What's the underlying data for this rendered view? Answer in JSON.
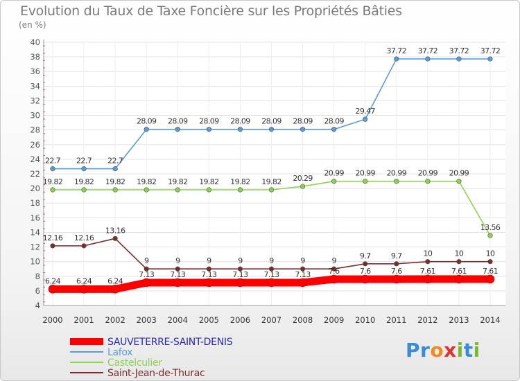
{
  "header": {
    "title": "Evolution du Taux de Taxe Foncière sur les Propriétés Bâties",
    "unit": "(en %)"
  },
  "brand": {
    "letters": [
      "P",
      "r",
      "o",
      "x",
      "i",
      "t",
      "i"
    ],
    "colors": [
      "#3a8ad6",
      "#3a8ad6",
      "#f08a1c",
      "#e03030",
      "#7ab82e",
      "#3a8ad6",
      "#7ab82e"
    ]
  },
  "chart_data": {
    "type": "line",
    "title": "Evolution du Taux de Taxe Foncière sur les Propriétés Bâties",
    "ylabel": "(en %)",
    "xlabel": "",
    "x": [
      "2000",
      "2001",
      "2002",
      "2003",
      "2004",
      "2005",
      "2006",
      "2007",
      "2008",
      "2009",
      "2010",
      "2011",
      "2012",
      "2013",
      "2014"
    ],
    "ylim": [
      4,
      40
    ],
    "yticks": [
      4,
      6,
      8,
      10,
      12,
      14,
      16,
      18,
      20,
      22,
      24,
      26,
      28,
      30,
      32,
      34,
      36,
      38,
      40
    ],
    "grid": true,
    "legend": "bottom-left",
    "series": [
      {
        "name": "SAUVETERRE-SAINT-DENIS",
        "color": "#ff0000",
        "emphasis": true,
        "values": [
          6.24,
          6.24,
          6.24,
          7.13,
          7.13,
          7.13,
          7.13,
          7.13,
          7.13,
          7.6,
          7.6,
          7.6,
          7.61,
          7.61,
          7.61
        ],
        "labels": [
          "6.24",
          "6.24",
          "6.24",
          "7.13",
          "7.13",
          "7.13",
          "7.13",
          "7.13",
          "7.13",
          "7.6",
          "7.6",
          "7.6",
          "7.61",
          "7.61",
          "7.61"
        ]
      },
      {
        "name": "Lafox",
        "color": "#5b9bd5",
        "values": [
          22.7,
          22.7,
          22.7,
          28.09,
          28.09,
          28.09,
          28.09,
          28.09,
          28.09,
          28.09,
          29.47,
          37.72,
          37.72,
          37.72,
          37.72
        ],
        "labels": [
          "22.7",
          "22.7",
          "22.7",
          "28.09",
          "28.09",
          "28.09",
          "28.09",
          "28.09",
          "28.09",
          "28.09",
          "29.47",
          "37.72",
          "37.72",
          "37.72",
          "37.72"
        ]
      },
      {
        "name": "Castelculier",
        "color": "#8ed14f",
        "values": [
          19.82,
          19.82,
          19.82,
          19.82,
          19.82,
          19.82,
          19.82,
          19.82,
          20.29,
          20.99,
          20.99,
          20.99,
          20.99,
          20.99,
          13.56
        ],
        "labels": [
          "19.82",
          "19.82",
          "19.82",
          "19.82",
          "19.82",
          "19.82",
          "19.82",
          "19.82",
          "20.29",
          "20.99",
          "20.99",
          "20.99",
          "20.99",
          "20.99",
          "13.56"
        ]
      },
      {
        "name": "Saint-Jean-de-Thurac",
        "color": "#7a2b2b",
        "values": [
          12.16,
          12.16,
          13.16,
          9,
          9,
          9,
          9,
          9,
          9,
          9,
          9.7,
          9.7,
          10,
          10,
          10
        ],
        "labels": [
          "12.16",
          "12.16",
          "13.16",
          "9",
          "9",
          "9",
          "9",
          "9",
          "9",
          "9",
          "9.7",
          "9.7",
          "10",
          "10",
          "10"
        ]
      }
    ]
  }
}
